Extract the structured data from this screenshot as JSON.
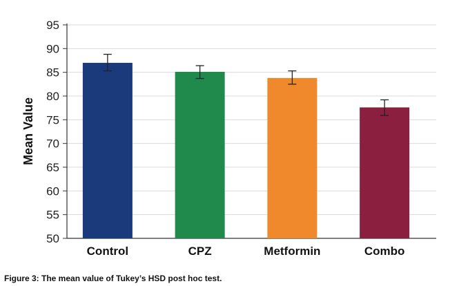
{
  "figure": {
    "caption": "Figure 3: The mean value of Tukey’s HSD post hoc test."
  },
  "chart_data": {
    "type": "bar",
    "categories": [
      "Control",
      "CPZ",
      "Metformin",
      "Combo"
    ],
    "values": [
      87.0,
      85.1,
      83.8,
      77.6
    ],
    "error_high": [
      88.8,
      86.4,
      85.3,
      79.2
    ],
    "error_low": [
      85.3,
      83.7,
      82.5,
      75.9
    ],
    "colors": [
      "#1a3a7c",
      "#1f8a4c",
      "#f0892b",
      "#8b1f3f"
    ],
    "title": "",
    "xlabel": "",
    "ylabel": "Mean Value",
    "ylim": [
      50,
      95
    ],
    "yticks": [
      "50",
      "55",
      "60",
      "65",
      "70",
      "75",
      "80",
      "85",
      "90",
      "95"
    ],
    "grid": true
  }
}
